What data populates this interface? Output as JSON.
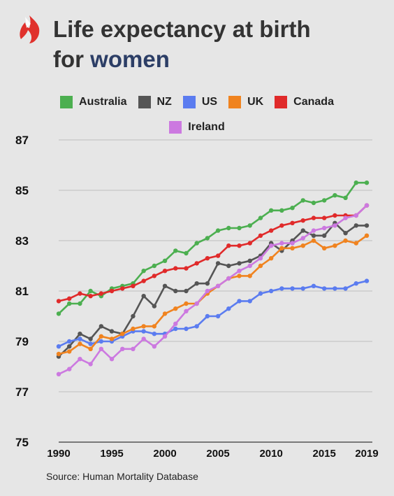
{
  "header": {
    "logo_icon": "sbs-flame-logo",
    "title_line1": "Life expectancy at birth",
    "title_line2_prefix": "for ",
    "title_line2_highlight": "women"
  },
  "source_text": "Source: Human Mortality Database",
  "colors": {
    "logo": "#e0312c",
    "title": "#333333",
    "title_highlight": "#2c3e66",
    "grid": "#bdbdbd",
    "background": "#e6e6e6"
  },
  "chart_data": {
    "type": "line",
    "title": "Life expectancy at birth for women",
    "xlabel": "",
    "ylabel": "",
    "xlim": [
      1990,
      2019
    ],
    "ylim": [
      75,
      87
    ],
    "x_ticks": [
      "1990",
      "1995",
      "2000",
      "2005",
      "2010",
      "2015",
      "2019"
    ],
    "y_ticks": [
      "87",
      "85",
      "83",
      "81",
      "79",
      "77",
      "75"
    ],
    "grid": true,
    "legend_position": "top",
    "x": [
      1990,
      1991,
      1992,
      1993,
      1994,
      1995,
      1996,
      1997,
      1998,
      1999,
      2000,
      2001,
      2002,
      2003,
      2004,
      2005,
      2006,
      2007,
      2008,
      2009,
      2010,
      2011,
      2012,
      2013,
      2014,
      2015,
      2016,
      2017,
      2018,
      2019
    ],
    "series": [
      {
        "name": "Australia",
        "color": "#4caf50",
        "values": [
          80.1,
          80.5,
          80.5,
          81.0,
          80.8,
          81.1,
          81.2,
          81.3,
          81.8,
          82.0,
          82.2,
          82.6,
          82.5,
          82.9,
          83.1,
          83.4,
          83.5,
          83.5,
          83.6,
          83.9,
          84.2,
          84.2,
          84.3,
          84.6,
          84.5,
          84.6,
          84.8,
          84.7,
          85.3,
          85.3
        ]
      },
      {
        "name": "NZ",
        "color": "#555555",
        "values": [
          78.4,
          78.8,
          79.3,
          79.1,
          79.6,
          79.4,
          79.3,
          80.0,
          80.8,
          80.4,
          81.2,
          81.0,
          81.0,
          81.3,
          81.3,
          82.1,
          82.0,
          82.1,
          82.2,
          82.4,
          82.9,
          82.6,
          83.0,
          83.4,
          83.2,
          83.2,
          83.7,
          83.3,
          83.6,
          83.6
        ]
      },
      {
        "name": "US",
        "color": "#5b7cf0",
        "values": [
          78.8,
          79.0,
          79.1,
          78.9,
          79.0,
          79.0,
          79.2,
          79.4,
          79.4,
          79.3,
          79.3,
          79.5,
          79.5,
          79.6,
          80.0,
          80.0,
          80.3,
          80.6,
          80.6,
          80.9,
          81.0,
          81.1,
          81.1,
          81.1,
          81.2,
          81.1,
          81.1,
          81.1,
          81.3,
          81.4
        ]
      },
      {
        "name": "UK",
        "color": "#f0831f",
        "values": [
          78.5,
          78.6,
          78.9,
          78.7,
          79.2,
          79.1,
          79.3,
          79.5,
          79.6,
          79.6,
          80.1,
          80.3,
          80.5,
          80.5,
          80.9,
          81.2,
          81.5,
          81.6,
          81.6,
          82.0,
          82.3,
          82.7,
          82.7,
          82.8,
          83.0,
          82.7,
          82.8,
          83.0,
          82.9,
          83.2
        ]
      },
      {
        "name": "Canada",
        "color": "#e02a2a",
        "values": [
          80.6,
          80.7,
          80.9,
          80.8,
          80.9,
          81.0,
          81.1,
          81.2,
          81.4,
          81.6,
          81.8,
          81.9,
          81.9,
          82.1,
          82.3,
          82.4,
          82.8,
          82.8,
          82.9,
          83.2,
          83.4,
          83.6,
          83.7,
          83.8,
          83.9,
          83.9,
          84.0,
          84.0,
          84.0,
          84.4
        ]
      },
      {
        "name": "Ireland",
        "color": "#cc79e0",
        "values": [
          77.7,
          77.9,
          78.3,
          78.1,
          78.7,
          78.3,
          78.7,
          78.7,
          79.1,
          78.8,
          79.2,
          79.7,
          80.2,
          80.5,
          81.0,
          81.2,
          81.5,
          81.8,
          82.0,
          82.3,
          82.8,
          82.9,
          82.9,
          83.1,
          83.4,
          83.5,
          83.6,
          83.9,
          84.0,
          84.4
        ]
      }
    ]
  }
}
